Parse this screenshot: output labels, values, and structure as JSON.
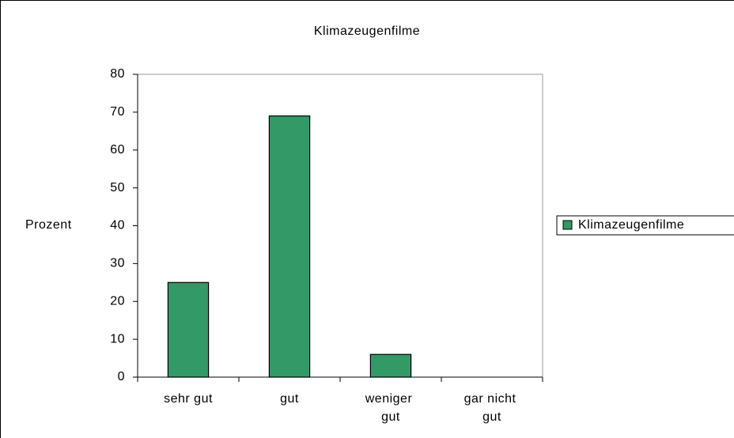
{
  "chart_data": {
    "type": "bar",
    "title": "Klimazeugenfilme",
    "y_label": "Prozent",
    "categories": [
      "sehr gut",
      "gut",
      "weniger gut",
      "gar nicht gut"
    ],
    "series": [
      {
        "name": "Klimazeugenfilme",
        "color": "#339966",
        "values": [
          25,
          69,
          6,
          0
        ]
      }
    ],
    "ylim": [
      0,
      80
    ],
    "yticks": [
      0,
      10,
      20,
      30,
      40,
      50,
      60,
      70,
      80
    ],
    "legend": "right"
  }
}
